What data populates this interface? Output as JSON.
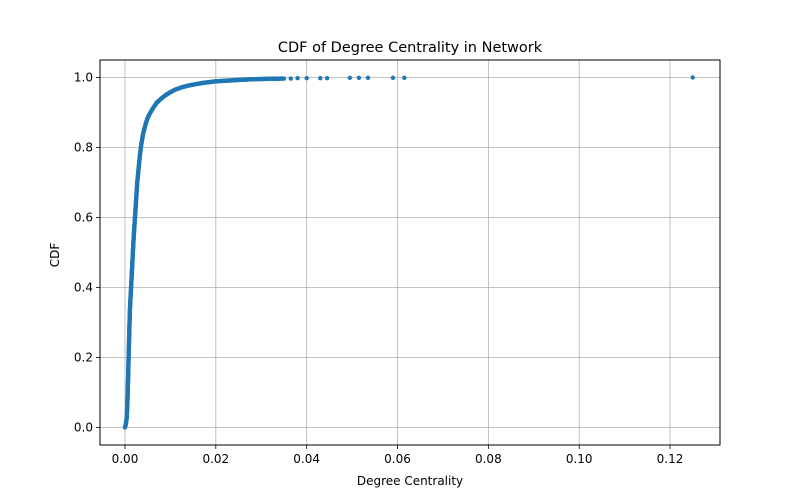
{
  "chart_data": {
    "type": "scatter",
    "title": "CDF of Degree Centrality in Network",
    "xlabel": "Degree Centrality",
    "ylabel": "CDF",
    "xlim": [
      -0.0055,
      0.131
    ],
    "ylim": [
      -0.05,
      1.05
    ],
    "xticks": [
      0.0,
      0.02,
      0.04,
      0.06,
      0.08,
      0.1,
      0.12
    ],
    "xtick_labels": [
      "0.00",
      "0.02",
      "0.04",
      "0.06",
      "0.08",
      "0.10",
      "0.12"
    ],
    "yticks": [
      0.0,
      0.2,
      0.4,
      0.6,
      0.8,
      1.0
    ],
    "ytick_labels": [
      "0.0",
      "0.2",
      "0.4",
      "0.6",
      "0.8",
      "1.0"
    ],
    "grid": true,
    "color": "#1f77b4",
    "curve": [
      [
        0.0,
        0.0
      ],
      [
        0.0002,
        0.01
      ],
      [
        0.0004,
        0.03
      ],
      [
        0.0005,
        0.06
      ],
      [
        0.0006,
        0.1
      ],
      [
        0.0007,
        0.15
      ],
      [
        0.0008,
        0.2
      ],
      [
        0.0009,
        0.25
      ],
      [
        0.001,
        0.3
      ],
      [
        0.0011,
        0.34
      ],
      [
        0.0013,
        0.39
      ],
      [
        0.0015,
        0.44
      ],
      [
        0.0017,
        0.49
      ],
      [
        0.0019,
        0.54
      ],
      [
        0.0021,
        0.58
      ],
      [
        0.0023,
        0.62
      ],
      [
        0.0025,
        0.66
      ],
      [
        0.0027,
        0.7
      ],
      [
        0.003,
        0.74
      ],
      [
        0.0033,
        0.78
      ],
      [
        0.0036,
        0.81
      ],
      [
        0.004,
        0.84
      ],
      [
        0.0045,
        0.865
      ],
      [
        0.005,
        0.885
      ],
      [
        0.0056,
        0.9
      ],
      [
        0.0063,
        0.915
      ],
      [
        0.007,
        0.928
      ],
      [
        0.008,
        0.94
      ],
      [
        0.009,
        0.95
      ],
      [
        0.01,
        0.958
      ],
      [
        0.011,
        0.965
      ],
      [
        0.0125,
        0.972
      ],
      [
        0.014,
        0.977
      ],
      [
        0.016,
        0.982
      ],
      [
        0.018,
        0.986
      ],
      [
        0.02,
        0.989
      ],
      [
        0.0225,
        0.991
      ],
      [
        0.025,
        0.993
      ],
      [
        0.028,
        0.995
      ],
      [
        0.031,
        0.996
      ],
      [
        0.035,
        0.997
      ]
    ],
    "tail_points": [
      [
        0.0365,
        0.997
      ],
      [
        0.038,
        0.998
      ],
      [
        0.04,
        0.998
      ],
      [
        0.043,
        0.998
      ],
      [
        0.0445,
        0.998
      ],
      [
        0.0495,
        0.999
      ],
      [
        0.0515,
        0.999
      ],
      [
        0.0535,
        0.999
      ],
      [
        0.059,
        0.999
      ],
      [
        0.0615,
        0.999
      ],
      [
        0.125,
        1.0
      ]
    ]
  }
}
